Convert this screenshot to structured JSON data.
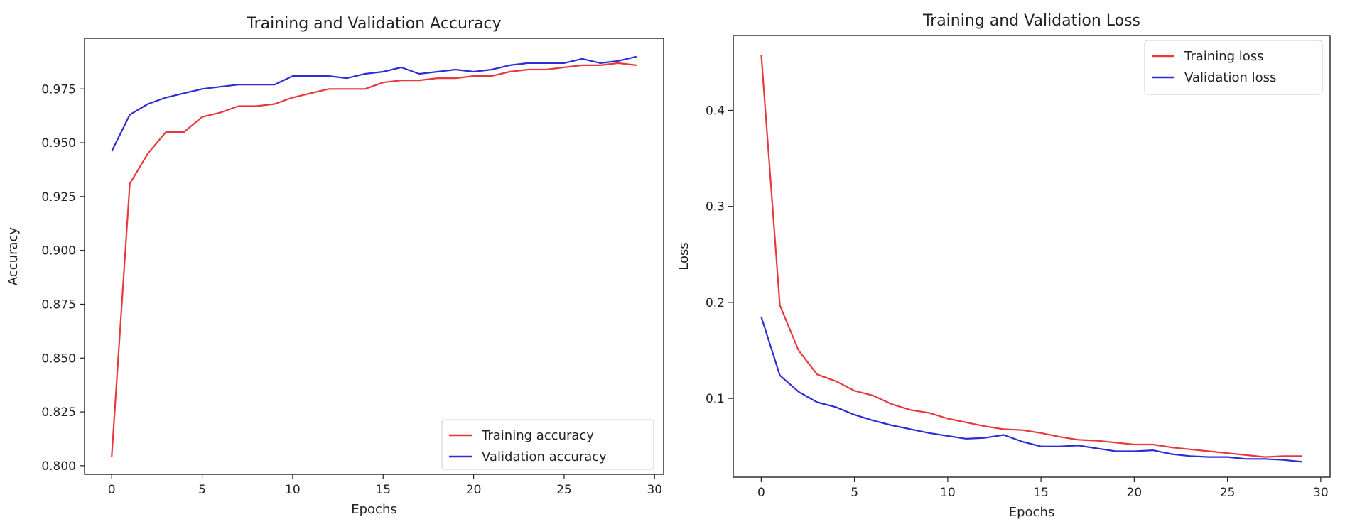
{
  "chart_data": [
    {
      "type": "line",
      "title": "Training and Validation Accuracy",
      "xlabel": "Epochs",
      "ylabel": "Accuracy",
      "xlim": [
        -1.5,
        30.5
      ],
      "ylim": [
        0.796,
        0.9985
      ],
      "xticks": [
        0,
        5,
        10,
        15,
        20,
        25,
        30
      ],
      "xtick_labels": [
        "0",
        "5",
        "10",
        "15",
        "20",
        "25",
        "30"
      ],
      "yticks": [
        0.8,
        0.825,
        0.85,
        0.875,
        0.9,
        0.925,
        0.95,
        0.975
      ],
      "ytick_labels": [
        "0.800",
        "0.825",
        "0.850",
        "0.875",
        "0.900",
        "0.925",
        "0.950",
        "0.975"
      ],
      "grid": false,
      "legend_position": "lower-right",
      "x": [
        0,
        1,
        2,
        3,
        4,
        5,
        6,
        7,
        8,
        9,
        10,
        11,
        12,
        13,
        14,
        15,
        16,
        17,
        18,
        19,
        20,
        21,
        22,
        23,
        24,
        25,
        26,
        27,
        28,
        29
      ],
      "series": [
        {
          "name": "Training accuracy",
          "color": "#e8383d",
          "values": [
            0.804,
            0.931,
            0.945,
            0.955,
            0.955,
            0.962,
            0.964,
            0.967,
            0.967,
            0.968,
            0.971,
            0.973,
            0.975,
            0.975,
            0.975,
            0.978,
            0.979,
            0.979,
            0.98,
            0.98,
            0.981,
            0.981,
            0.983,
            0.984,
            0.984,
            0.985,
            0.986,
            0.986,
            0.987,
            0.986
          ]
        },
        {
          "name": "Validation accuracy",
          "color": "#2d2dd6",
          "values": [
            0.946,
            0.963,
            0.968,
            0.971,
            0.973,
            0.975,
            0.976,
            0.977,
            0.977,
            0.977,
            0.981,
            0.981,
            0.981,
            0.98,
            0.982,
            0.983,
            0.985,
            0.982,
            0.983,
            0.984,
            0.983,
            0.984,
            0.986,
            0.987,
            0.987,
            0.987,
            0.989,
            0.987,
            0.988,
            0.99
          ]
        }
      ]
    },
    {
      "type": "line",
      "title": "Training and Validation Loss",
      "xlabel": "Epochs",
      "ylabel": "Loss",
      "xlim": [
        -1.5,
        30.5
      ],
      "ylim": [
        0.018,
        0.478
      ],
      "xticks": [
        0,
        5,
        10,
        15,
        20,
        25,
        30
      ],
      "xtick_labels": [
        "0",
        "5",
        "10",
        "15",
        "20",
        "25",
        "30"
      ],
      "yticks": [
        0.1,
        0.2,
        0.3,
        0.4
      ],
      "ytick_labels": [
        "0.1",
        "0.2",
        "0.3",
        "0.4"
      ],
      "grid": false,
      "legend_position": "upper-right",
      "x": [
        0,
        1,
        2,
        3,
        4,
        5,
        6,
        7,
        8,
        9,
        10,
        11,
        12,
        13,
        14,
        15,
        16,
        17,
        18,
        19,
        20,
        21,
        22,
        23,
        24,
        25,
        26,
        27,
        28,
        29
      ],
      "series": [
        {
          "name": "Training loss",
          "color": "#e8383d",
          "values": [
            0.458,
            0.197,
            0.15,
            0.125,
            0.118,
            0.108,
            0.103,
            0.094,
            0.088,
            0.085,
            0.079,
            0.075,
            0.071,
            0.068,
            0.067,
            0.064,
            0.06,
            0.057,
            0.056,
            0.054,
            0.052,
            0.052,
            0.049,
            0.047,
            0.045,
            0.043,
            0.041,
            0.039,
            0.04,
            0.04
          ]
        },
        {
          "name": "Validation loss",
          "color": "#2d2dd6",
          "values": [
            0.185,
            0.124,
            0.107,
            0.096,
            0.091,
            0.083,
            0.077,
            0.072,
            0.068,
            0.064,
            0.061,
            0.058,
            0.059,
            0.062,
            0.055,
            0.05,
            0.05,
            0.051,
            0.048,
            0.045,
            0.045,
            0.046,
            0.042,
            0.04,
            0.039,
            0.039,
            0.037,
            0.037,
            0.036,
            0.034
          ]
        }
      ]
    }
  ]
}
